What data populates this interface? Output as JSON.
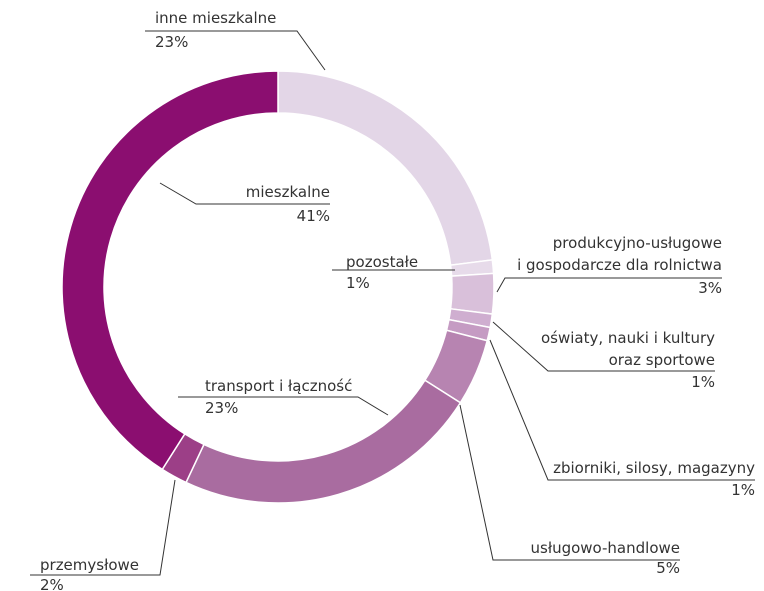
{
  "chart_data": {
    "type": "donut",
    "categories": [
      "inne mieszkalne",
      "pozostałe",
      "produkcyjno-usługowe\ni gospodarcze dla rolnictwa",
      "oświaty, nauki i kultury\noraz sportowe",
      "zbiorniki, silosy, magazyny",
      "usługowo-handlowe",
      "transport i łączność",
      "przemysłowe",
      "mieszkalne"
    ],
    "values": [
      23,
      1,
      3,
      1,
      1,
      5,
      23,
      2,
      41
    ],
    "value_labels": [
      "23%",
      "1%",
      "3%",
      "1%",
      "1%",
      "5%",
      "23%",
      "2%",
      "41%"
    ],
    "colors": [
      "#e3d6e7",
      "#e7dbea",
      "#d9c0da",
      "#cfaed0",
      "#c59bc3",
      "#b784b1",
      "#a96ca0",
      "#9c3f87",
      "#8b0e70"
    ]
  }
}
